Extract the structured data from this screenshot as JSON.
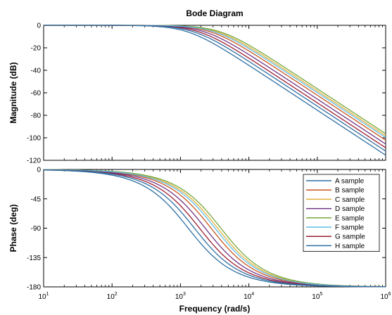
{
  "chart_data": {
    "type": "line",
    "title": "Bode Diagram",
    "xlabel": "Frequency  (rad/s)",
    "x_scale": "log",
    "xlim": [
      10,
      1000000
    ],
    "x_ticks": [
      {
        "base": "10",
        "exp": "1"
      },
      {
        "base": "10",
        "exp": "2"
      },
      {
        "base": "10",
        "exp": "3"
      },
      {
        "base": "10",
        "exp": "4"
      },
      {
        "base": "10",
        "exp": "5"
      },
      {
        "base": "10",
        "exp": "6"
      }
    ],
    "legend_position": "bottom-right of phase panel",
    "grid": false,
    "panels": [
      {
        "id": "magnitude",
        "ylabel": "Magnitude (dB)",
        "ylim": [
          -120,
          0
        ],
        "y_ticks": [
          "0",
          "-20",
          "-40",
          "-60",
          "-80",
          "-100",
          "-120"
        ],
        "y_tick_values": [
          0,
          -20,
          -40,
          -60,
          -80,
          -100,
          -120
        ]
      },
      {
        "id": "phase",
        "ylabel": "Phase (deg)",
        "ylim": [
          -180,
          0
        ],
        "y_ticks": [
          "0",
          "-45",
          "-90",
          "-135",
          "-180"
        ],
        "y_tick_values": [
          0,
          -45,
          -90,
          -135,
          -180
        ]
      }
    ],
    "series": [
      {
        "name": "A sample",
        "color": "#2f6fa3",
        "corner_freq_rad_s": 1300
      },
      {
        "name": "B sample",
        "color": "#c8561e",
        "corner_freq_rad_s": 2800
      },
      {
        "name": "C sample",
        "color": "#e2b13c",
        "corner_freq_rad_s": 3500
      },
      {
        "name": "D sample",
        "color": "#6f3585",
        "corner_freq_rad_s": 2300
      },
      {
        "name": "E sample",
        "color": "#77a83a",
        "corner_freq_rad_s": 3900
      },
      {
        "name": "F sample",
        "color": "#5fbce6",
        "corner_freq_rad_s": 3200
      },
      {
        "name": "G sample",
        "color": "#9c1f33",
        "corner_freq_rad_s": 1900
      },
      {
        "name": "H sample",
        "color": "#2f6fa3",
        "corner_freq_rad_s": 1600
      }
    ]
  }
}
